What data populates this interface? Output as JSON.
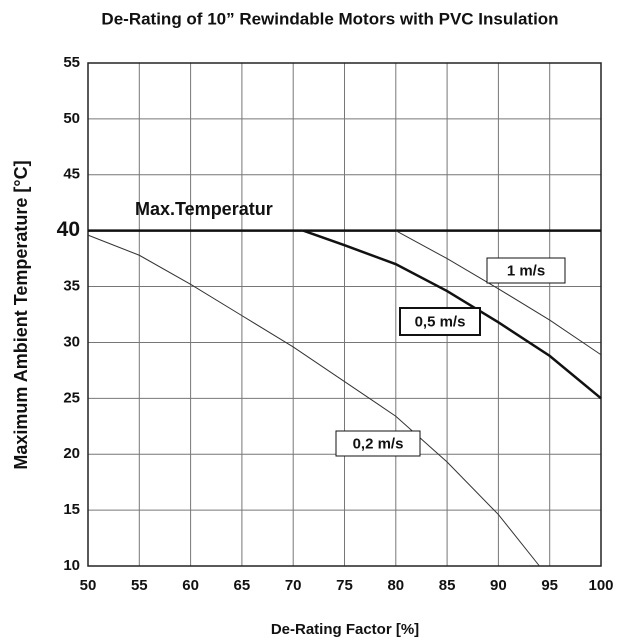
{
  "chart_data": {
    "type": "line",
    "title": "De-Rating of 10” Rewindable Motors with PVC Insulation",
    "xlabel": "De-Rating Factor [%]",
    "ylabel": "Maximum Ambient Temperature [°C]",
    "xlim": [
      50,
      100
    ],
    "xticks": [
      50,
      55,
      60,
      65,
      70,
      75,
      80,
      85,
      90,
      95,
      100
    ],
    "ylim": [
      10,
      55
    ],
    "yticks": [
      10,
      15,
      20,
      25,
      30,
      35,
      40,
      45,
      50,
      55
    ],
    "grid": true,
    "series": [
      {
        "name": "Max.Temperatur",
        "color": "#111111",
        "linewidth": 2.5,
        "x": [
          50,
          100
        ],
        "values": [
          40,
          40
        ]
      },
      {
        "name": "0,2 m/s",
        "color": "#333333",
        "linewidth": 1,
        "x": [
          50,
          55,
          60,
          65,
          70,
          75,
          80,
          85,
          90,
          94
        ],
        "values": [
          39.6,
          37.8,
          35.2,
          32.4,
          29.6,
          26.5,
          23.4,
          19.3,
          14.6,
          10
        ]
      },
      {
        "name": "0,5 m/s",
        "color": "#111111",
        "linewidth": 2.5,
        "x": [
          71,
          75,
          80,
          85,
          90,
          95,
          100
        ],
        "values": [
          40,
          38.7,
          37,
          34.6,
          31.8,
          28.8,
          25
        ]
      },
      {
        "name": "1 m/s",
        "color": "#333333",
        "linewidth": 1,
        "x": [
          80,
          85,
          90,
          95,
          100
        ],
        "values": [
          40,
          37.5,
          34.8,
          32,
          28.9
        ]
      }
    ]
  }
}
